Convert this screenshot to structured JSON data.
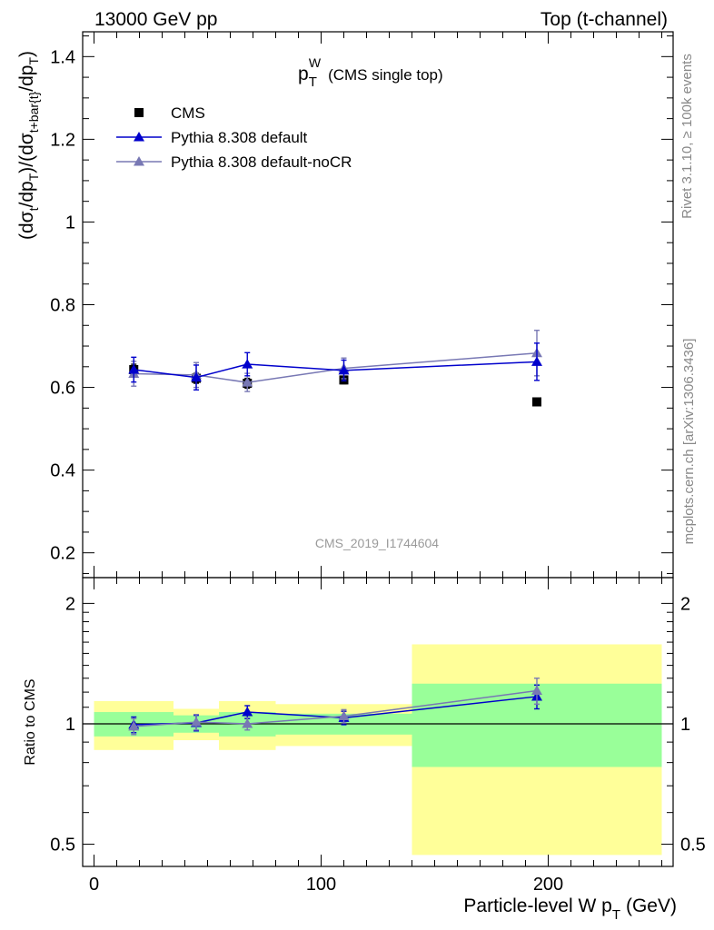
{
  "header": {
    "left": "13000 GeV pp",
    "right": "Top (t-channel)"
  },
  "side_labels": {
    "rivet": "Rivet 3.1.10, ≥ 100k events",
    "mcplots": "mcplots.cern.ch [arXiv:1306.3436]"
  },
  "chart_data": [
    {
      "type": "scatter",
      "panel": "main",
      "title_main": "p",
      "title_sub": "T",
      "title_sup": "W",
      "title_rest": "(CMS single top)",
      "ylabel": "(dσ_t/dp_T)/(dσ_{t+bar{t}}/dp_T)",
      "watermark": "CMS_2019_I1744604",
      "xlim": [
        -5,
        255
      ],
      "ylim": [
        0.14,
        1.46
      ],
      "yticks": [
        0.2,
        0.4,
        0.6,
        0.8,
        1,
        1.2,
        1.4
      ],
      "ytick_labels": [
        "0.2",
        "0.4",
        "0.6",
        "0.8",
        "1",
        "1.2",
        "1.4"
      ],
      "legend_position": "top-left",
      "series": [
        {
          "name": "CMS",
          "color": "#000000",
          "marker": "square",
          "line": false,
          "x": [
            17.5,
            45,
            67.5,
            110,
            195
          ],
          "y": [
            0.643,
            0.622,
            0.61,
            0.618,
            0.565
          ],
          "err": [
            0.013,
            0.012,
            0.012,
            0.009,
            0.0
          ]
        },
        {
          "name": "Pythia 8.308 default",
          "color": "#0000cc",
          "marker": "triangle",
          "line": true,
          "x": [
            17.5,
            45,
            67.5,
            110,
            195
          ],
          "y": [
            0.643,
            0.624,
            0.656,
            0.641,
            0.662
          ],
          "err": [
            0.03,
            0.03,
            0.028,
            0.025,
            0.045
          ]
        },
        {
          "name": "Pythia 8.308 default-noCR",
          "color": "#7878b4",
          "marker": "triangle",
          "line": true,
          "x": [
            17.5,
            45,
            67.5,
            110,
            195
          ],
          "y": [
            0.633,
            0.63,
            0.612,
            0.646,
            0.683
          ],
          "err": [
            0.03,
            0.03,
            0.022,
            0.025,
            0.055
          ]
        }
      ]
    },
    {
      "type": "scatter",
      "panel": "ratio",
      "ylabel": "Ratio to CMS",
      "xlabel_main": "Particle-level W p",
      "xlabel_sub": "T",
      "xlabel_unit": "(GeV)",
      "xlim": [
        -5,
        255
      ],
      "ylim": [
        0.44,
        2.32
      ],
      "log_y": true,
      "xticks": [
        0,
        100,
        200
      ],
      "xtick_labels": [
        "0",
        "100",
        "200"
      ],
      "yticks": [
        0.5,
        1,
        2
      ],
      "ytick_labels": [
        "0.5",
        "1",
        "2"
      ],
      "bands": [
        {
          "x0": 0,
          "x1": 35,
          "green": [
            0.93,
            1.07
          ],
          "yellow": [
            0.86,
            1.14
          ]
        },
        {
          "x0": 35,
          "x1": 55,
          "green": [
            0.95,
            1.05
          ],
          "yellow": [
            0.91,
            1.09
          ]
        },
        {
          "x0": 55,
          "x1": 80,
          "green": [
            0.93,
            1.07
          ],
          "yellow": [
            0.86,
            1.14
          ]
        },
        {
          "x0": 80,
          "x1": 140,
          "green": [
            0.94,
            1.06
          ],
          "yellow": [
            0.88,
            1.12
          ]
        },
        {
          "x0": 140,
          "x1": 250,
          "green": [
            0.78,
            1.26
          ],
          "yellow": [
            0.47,
            1.58
          ]
        }
      ],
      "series": [
        {
          "name": "Pythia 8.308 default",
          "color": "#0000cc",
          "x": [
            17.5,
            45,
            67.5,
            110,
            195
          ],
          "y": [
            0.995,
            1.005,
            1.07,
            1.035,
            1.17
          ],
          "err": [
            0.045,
            0.045,
            0.04,
            0.04,
            0.08
          ]
        },
        {
          "name": "Pythia 8.308 default-noCR",
          "color": "#7878b4",
          "x": [
            17.5,
            45,
            67.5,
            110,
            195
          ],
          "y": [
            0.985,
            1.01,
            1.0,
            1.045,
            1.21
          ],
          "err": [
            0.045,
            0.045,
            0.035,
            0.04,
            0.09
          ]
        }
      ]
    }
  ]
}
